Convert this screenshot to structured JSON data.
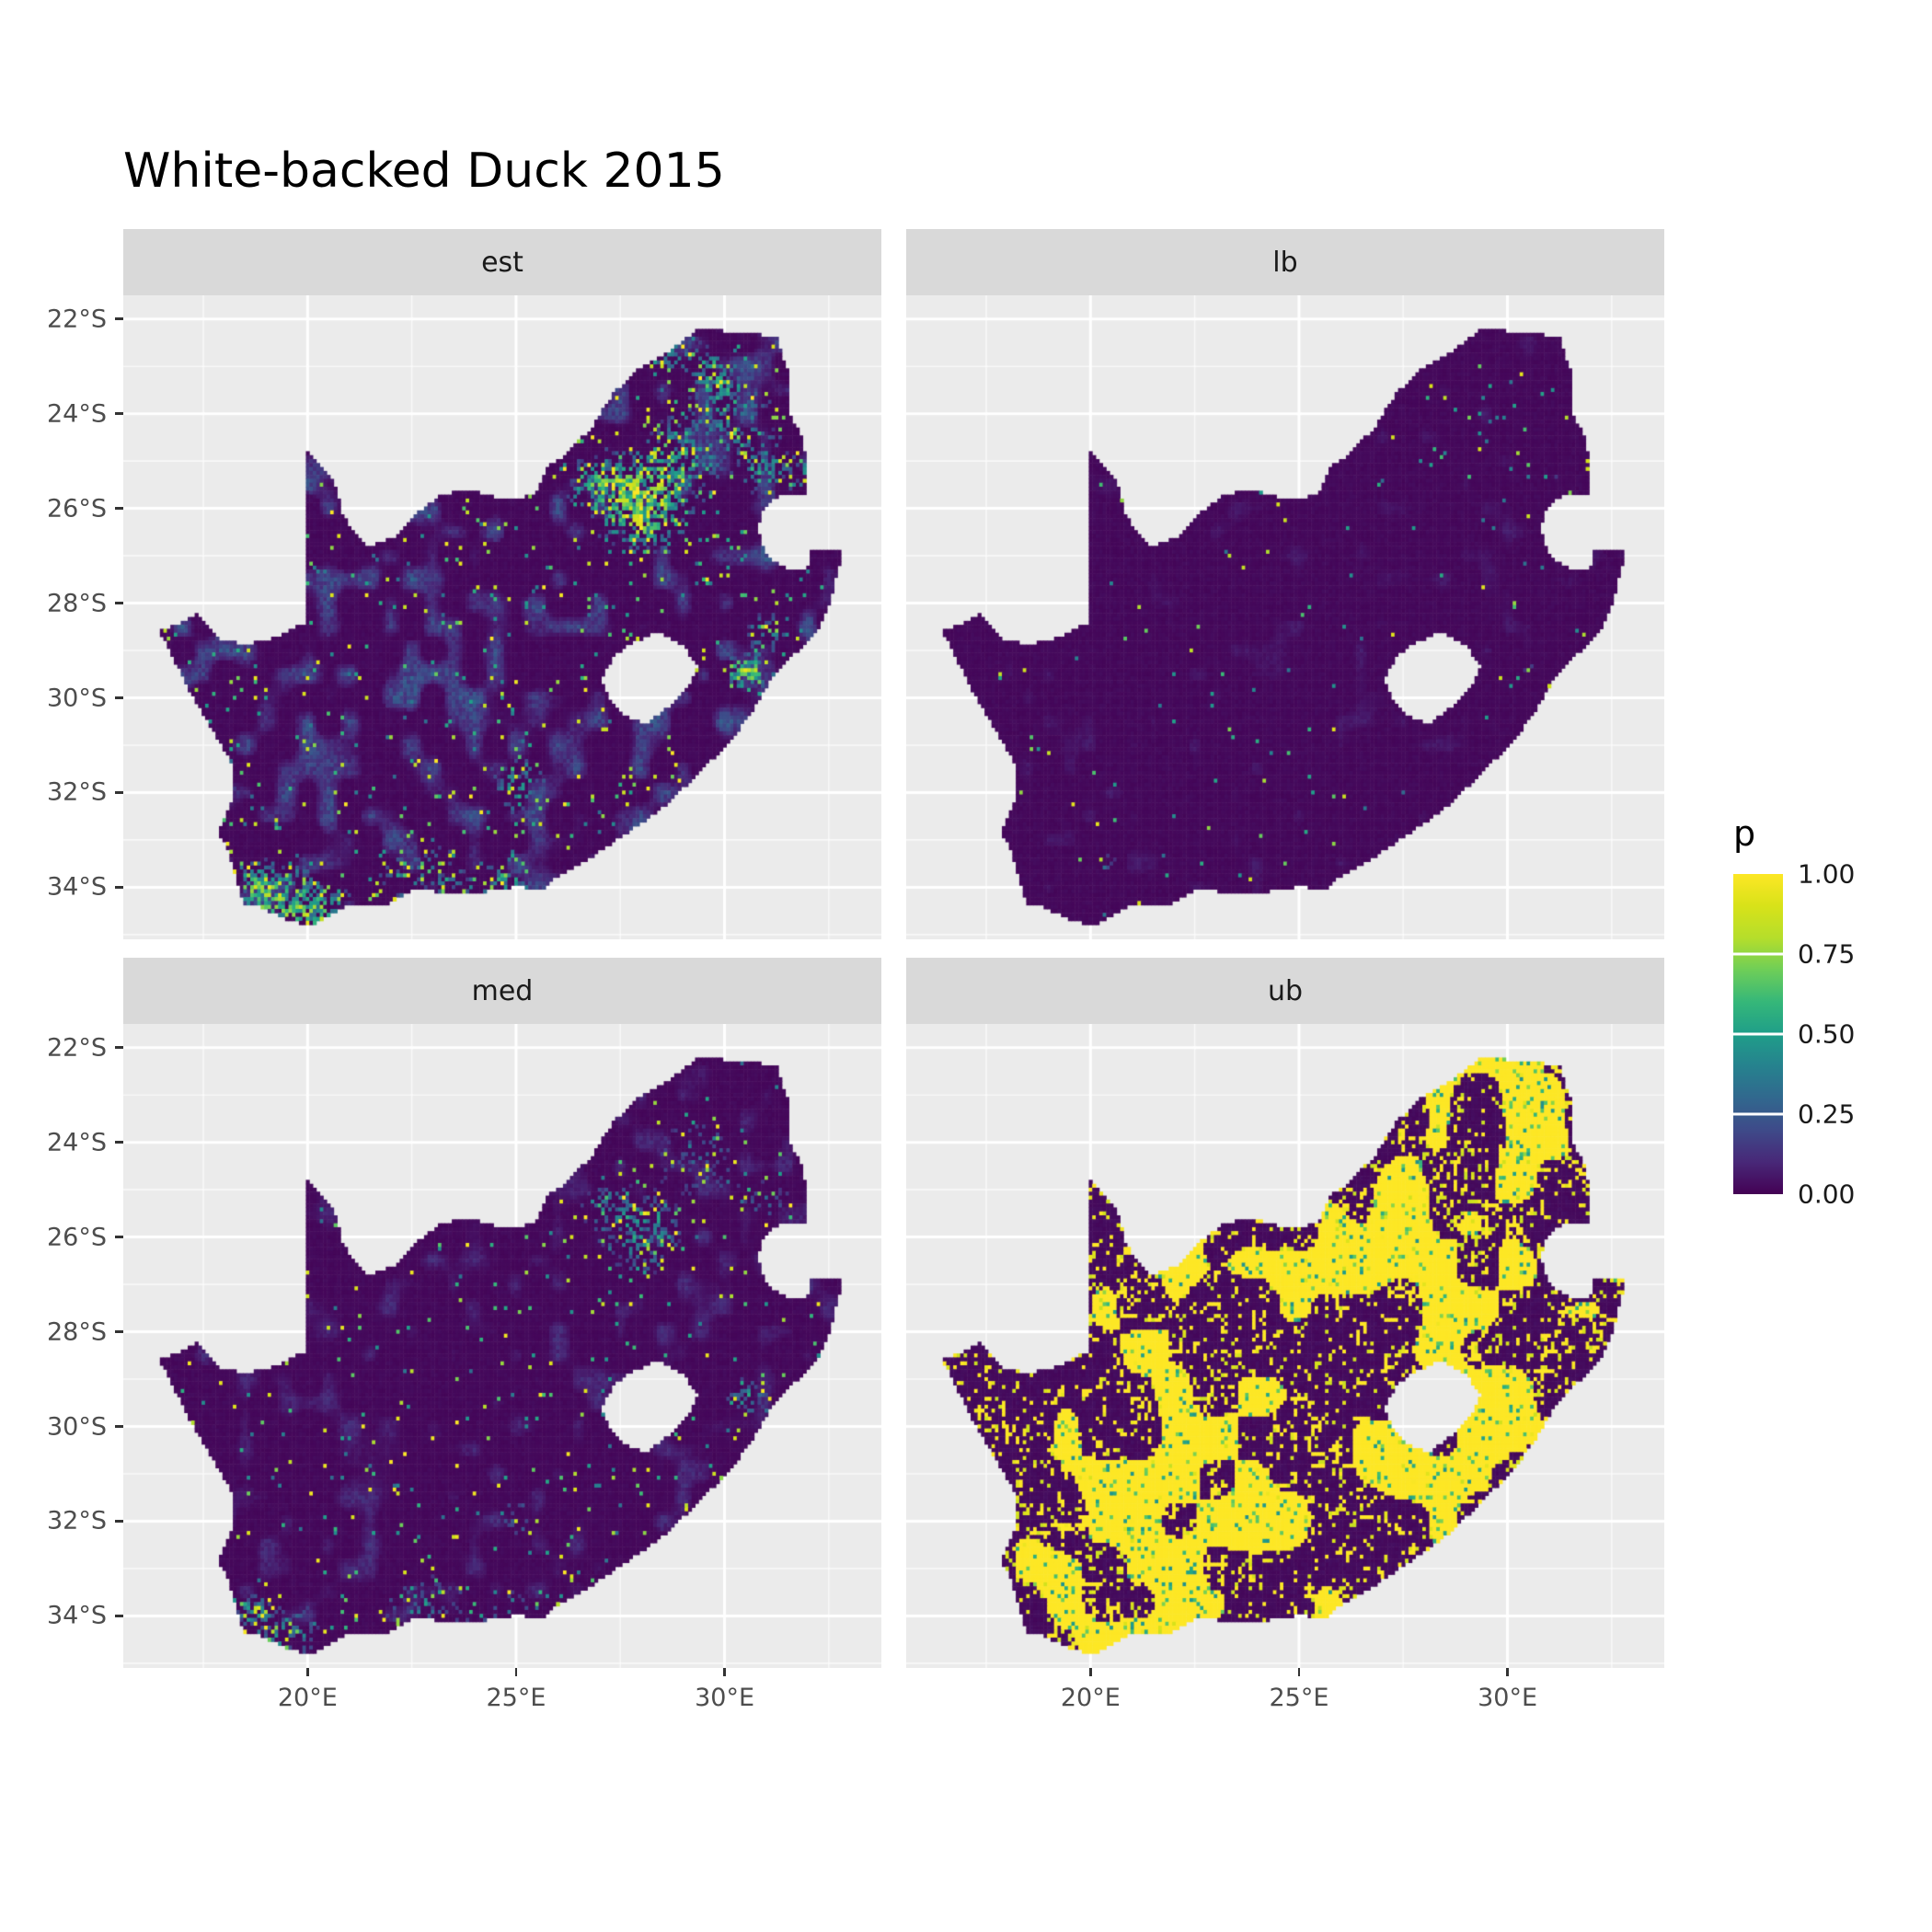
{
  "chart_data": {
    "type": "heatmap",
    "title": "White-backed Duck 2015",
    "subtitle": "",
    "legend": {
      "title": "p",
      "position": "right",
      "ticks": [
        {
          "label": "1.00",
          "value": 1
        },
        {
          "label": "0.75",
          "value": 0.75
        },
        {
          "label": "0.50",
          "value": 0.5
        },
        {
          "label": "0.25",
          "value": 0.25
        },
        {
          "label": "0.00",
          "value": 0
        }
      ]
    },
    "x_ticks": [
      {
        "label": "20°E",
        "value": 20
      },
      {
        "label": "25°E",
        "value": 25
      },
      {
        "label": "30°E",
        "value": 30
      }
    ],
    "y_ticks": [
      {
        "label": "22°S",
        "value": -22
      },
      {
        "label": "24°S",
        "value": -24
      },
      {
        "label": "26°S",
        "value": -26
      },
      {
        "label": "28°S",
        "value": -28
      },
      {
        "label": "30°S",
        "value": -30
      },
      {
        "label": "32°S",
        "value": -32
      },
      {
        "label": "34°S",
        "value": -34
      }
    ],
    "axes": {
      "lon_min": 15.58,
      "lon_max": 33.76,
      "lat_top": -21.5,
      "lat_bottom": -35.1,
      "minor_lon": [
        17.5,
        22.5,
        27.5,
        32.5
      ],
      "minor_lat": [
        -23,
        -25,
        -27,
        -29,
        -31,
        -33,
        -35
      ],
      "grid": "on"
    },
    "colors": {
      "viridis": [
        "#440154",
        "#482878",
        "#3e4a89",
        "#31688e",
        "#26828e",
        "#1f9e89",
        "#35b779",
        "#6ece58",
        "#b5de2b",
        "#d8e219",
        "#fde725"
      ],
      "panel_bg": "#ebebeb",
      "strip_bg": "#d9d9d9",
      "gridline": "#ffffff",
      "axis_text": "#4d4d4d",
      "strip_text": "#1a1a1a",
      "title_text": "#000000",
      "raster_low": "#440154",
      "raster_high": "#fde725"
    },
    "cell_size_deg": 0.0833333,
    "facets": [
      {
        "label": "est",
        "seed": 11,
        "base": 0.02,
        "texture": {
          "scale": 0.5,
          "thresh": 0.56,
          "amp": 0.3
        },
        "hot_fill": 0.85,
        "hotspots": [
          [
            28.05,
            -25.95,
            1.0,
            1.0
          ],
          [
            27.0,
            -25.5,
            0.7,
            0.55
          ],
          [
            28.9,
            -24.9,
            0.9,
            0.5
          ],
          [
            30.2,
            -24.0,
            1.0,
            0.35
          ],
          [
            29.7,
            -23.2,
            0.8,
            0.35
          ],
          [
            31.0,
            -25.2,
            0.8,
            0.4
          ],
          [
            30.55,
            -29.45,
            0.45,
            0.85
          ],
          [
            31.0,
            -28.6,
            0.5,
            0.4
          ],
          [
            25.1,
            -31.9,
            0.6,
            0.55
          ],
          [
            19.4,
            -34.35,
            0.9,
            0.65
          ],
          [
            18.7,
            -33.9,
            0.5,
            0.6
          ],
          [
            22.8,
            -34.0,
            1.3,
            0.3
          ],
          [
            24.8,
            -34.0,
            0.8,
            0.35
          ],
          [
            20.3,
            -34.55,
            0.7,
            0.5
          ],
          [
            28.6,
            -22.6,
            0.6,
            0.45
          ]
        ],
        "speckle": {
          "floor": 0.015,
          "hot": 0.6,
          "cluster_scale": 0.3,
          "vmin": 0.3,
          "vmax": 1.0
        },
        "blobs": {
          "scale": 1.0,
          "thresh": 2.0,
          "v": 1.0
        },
        "ridges": {
          "scale": 0.4,
          "width": 0.0,
          "prob": 0.0,
          "v": 1.0
        }
      },
      {
        "label": "lb",
        "seed": 22,
        "base": 0.02,
        "texture": {
          "scale": 0.5,
          "thresh": 0.78,
          "amp": 0.07
        },
        "hot_fill": 0.5,
        "hotspots": [
          [
            29.6,
            -24.2,
            1.2,
            0.12
          ],
          [
            31.2,
            -25.4,
            0.8,
            0.12
          ],
          [
            30.6,
            -29.3,
            0.6,
            0.16
          ],
          [
            28.3,
            -23.2,
            0.9,
            0.07
          ],
          [
            20.4,
            -33.5,
            0.3,
            0.3
          ]
        ],
        "speckle": {
          "floor": 0.004,
          "hot": 0.4,
          "cluster_scale": 0.3,
          "vmin": 0.3,
          "vmax": 0.95
        },
        "blobs": {
          "scale": 1.0,
          "thresh": 2.0,
          "v": 1.0
        },
        "ridges": {
          "scale": 0.4,
          "width": 0.0,
          "prob": 0.0,
          "v": 1.0
        }
      },
      {
        "label": "med",
        "seed": 33,
        "base": 0.02,
        "texture": {
          "scale": 0.5,
          "thresh": 0.66,
          "amp": 0.14
        },
        "hot_fill": 0.7,
        "hotspots": [
          [
            28.05,
            -25.95,
            0.9,
            0.5
          ],
          [
            27.2,
            -25.4,
            0.7,
            0.3
          ],
          [
            29.3,
            -24.3,
            1.1,
            0.25
          ],
          [
            31.0,
            -25.2,
            0.8,
            0.22
          ],
          [
            30.55,
            -29.4,
            0.45,
            0.5
          ],
          [
            25.1,
            -31.9,
            0.5,
            0.3
          ],
          [
            19.4,
            -34.35,
            0.8,
            0.5
          ],
          [
            22.9,
            -34.05,
            1.2,
            0.3
          ],
          [
            24.9,
            -34.0,
            0.7,
            0.3
          ],
          [
            18.7,
            -33.9,
            0.4,
            0.45
          ]
        ],
        "speckle": {
          "floor": 0.01,
          "hot": 0.5,
          "cluster_scale": 0.3,
          "vmin": 0.3,
          "vmax": 1.0
        },
        "blobs": {
          "scale": 1.0,
          "thresh": 2.0,
          "v": 1.0
        },
        "ridges": {
          "scale": 0.4,
          "width": 0.0,
          "prob": 0.0,
          "v": 1.0
        }
      },
      {
        "label": "ub",
        "seed": 44,
        "base": 0.025,
        "texture": {
          "scale": 0.5,
          "thresh": 0.9,
          "amp": 0.0
        },
        "hot_fill": 0.0,
        "hotspots": [
          [
            28.2,
            -25.8,
            1.6,
            0.9
          ],
          [
            26.5,
            -26.5,
            1.2,
            0.4
          ],
          [
            21.5,
            -27.5,
            1.3,
            0.35
          ],
          [
            31.4,
            -24.5,
            1.0,
            0.45
          ],
          [
            32.0,
            -28.3,
            0.8,
            0.4
          ],
          [
            30.0,
            -29.5,
            0.9,
            0.45
          ],
          [
            24.5,
            -32.0,
            1.2,
            0.35
          ],
          [
            19.3,
            -33.8,
            1.2,
            0.6
          ],
          [
            20.5,
            -34.3,
            1.5,
            0.5
          ],
          [
            18.5,
            -32.8,
            0.8,
            0.5
          ],
          [
            27.0,
            -30.5,
            1.0,
            0.3
          ]
        ],
        "speckle": {
          "floor": 0.05,
          "hot": 0.4,
          "cluster_scale": 0.25,
          "vmin": 0.85,
          "vmax": 1.0
        },
        "blobs": {
          "scale": 0.9,
          "thresh": 0.62,
          "v": 1.0
        },
        "ridges": {
          "scale": 0.35,
          "width": 0.045,
          "prob": 0.6,
          "v": 1.0
        }
      }
    ],
    "map": {
      "region": "South Africa",
      "outline": [
        [
          16.45,
          -28.58
        ],
        [
          16.9,
          -28.45
        ],
        [
          17.35,
          -28.2
        ],
        [
          17.9,
          -28.76
        ],
        [
          18.5,
          -28.87
        ],
        [
          19.2,
          -28.73
        ],
        [
          19.7,
          -28.5
        ],
        [
          19.98,
          -28.43
        ],
        [
          19.98,
          -24.76
        ],
        [
          20.6,
          -25.35
        ],
        [
          20.85,
          -26.15
        ],
        [
          21.4,
          -26.83
        ],
        [
          22.05,
          -26.62
        ],
        [
          22.6,
          -26.1
        ],
        [
          23.25,
          -25.68
        ],
        [
          24.0,
          -25.63
        ],
        [
          24.75,
          -25.82
        ],
        [
          25.45,
          -25.72
        ],
        [
          25.75,
          -25.1
        ],
        [
          26.15,
          -24.88
        ],
        [
          26.8,
          -24.3
        ],
        [
          27.35,
          -23.55
        ],
        [
          28.0,
          -23.0
        ],
        [
          28.8,
          -22.6
        ],
        [
          29.35,
          -22.2
        ],
        [
          30.0,
          -22.25
        ],
        [
          30.65,
          -22.3
        ],
        [
          31.25,
          -22.4
        ],
        [
          31.55,
          -23.2
        ],
        [
          31.55,
          -24.0
        ],
        [
          31.85,
          -24.5
        ],
        [
          32.0,
          -25.1
        ],
        [
          31.97,
          -25.7
        ],
        [
          31.3,
          -25.73
        ],
        [
          30.95,
          -25.95
        ],
        [
          30.8,
          -26.4
        ],
        [
          30.9,
          -26.8
        ],
        [
          31.15,
          -27.12
        ],
        [
          31.6,
          -27.3
        ],
        [
          31.97,
          -27.32
        ],
        [
          32.1,
          -26.85
        ],
        [
          32.85,
          -26.85
        ],
        [
          32.55,
          -27.9
        ],
        [
          32.25,
          -28.5
        ],
        [
          31.75,
          -29.0
        ],
        [
          31.1,
          -29.6
        ],
        [
          30.65,
          -30.3
        ],
        [
          30.1,
          -30.95
        ],
        [
          29.35,
          -31.6
        ],
        [
          28.55,
          -32.3
        ],
        [
          27.75,
          -32.8
        ],
        [
          26.9,
          -33.3
        ],
        [
          26.0,
          -33.75
        ],
        [
          25.65,
          -34.05
        ],
        [
          25.0,
          -33.98
        ],
        [
          24.2,
          -34.1
        ],
        [
          23.35,
          -34.1
        ],
        [
          22.55,
          -34.05
        ],
        [
          21.8,
          -34.4
        ],
        [
          20.9,
          -34.4
        ],
        [
          20.0,
          -34.83
        ],
        [
          19.35,
          -34.62
        ],
        [
          18.85,
          -34.4
        ],
        [
          18.45,
          -34.35
        ],
        [
          18.3,
          -33.9
        ],
        [
          18.05,
          -33.15
        ],
        [
          17.85,
          -32.8
        ],
        [
          18.25,
          -32.1
        ],
        [
          18.2,
          -31.4
        ],
        [
          17.65,
          -30.6
        ],
        [
          17.05,
          -29.65
        ],
        [
          16.75,
          -29.1
        ]
      ],
      "lesotho": [
        [
          27.05,
          -29.6
        ],
        [
          27.35,
          -29.1
        ],
        [
          27.75,
          -28.85
        ],
        [
          28.4,
          -28.6
        ],
        [
          29.0,
          -28.9
        ],
        [
          29.35,
          -29.3
        ],
        [
          29.15,
          -29.75
        ],
        [
          28.7,
          -30.15
        ],
        [
          28.1,
          -30.55
        ],
        [
          27.55,
          -30.35
        ],
        [
          27.2,
          -30.0
        ]
      ]
    }
  }
}
